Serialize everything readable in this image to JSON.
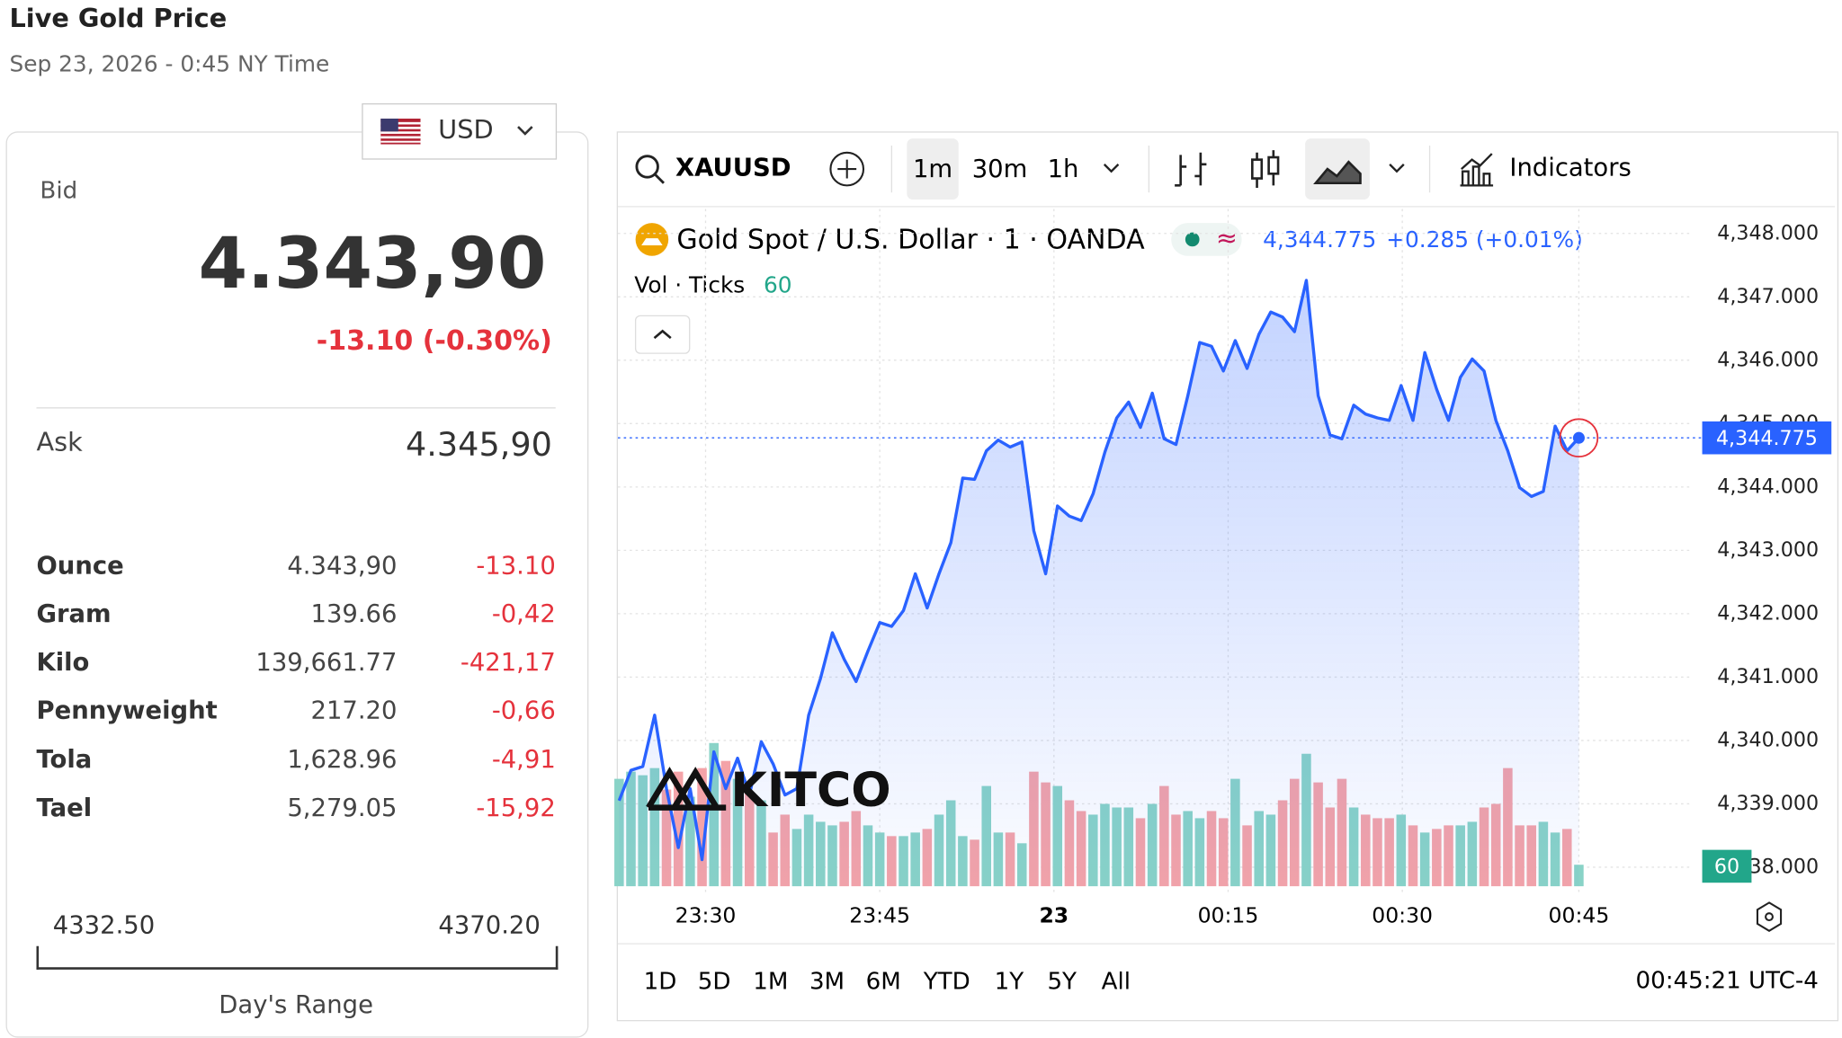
{
  "header": {
    "title": "Live Gold Price",
    "subtitle": "Sep 23, 2026 - 0:45 NY Time"
  },
  "panel": {
    "currency": "USD",
    "bid_label": "Bid",
    "bid": "4.343,90",
    "change": "-13.10 (-0.30%)",
    "ask_label": "Ask",
    "ask": "4.345,90",
    "rows": [
      [
        "Ounce",
        "4.343,90",
        "-13.10"
      ],
      [
        "Gram",
        "139.66",
        "-0,42"
      ],
      [
        "Kilo",
        "139,661.77",
        "-421,17"
      ],
      [
        "Pennyweight",
        "217.20",
        "-0,66"
      ],
      [
        "Tola",
        "1,628.96",
        "-4,91"
      ],
      [
        "Tael",
        "5,279.05",
        "-15,92"
      ]
    ],
    "range_low": "4332.50",
    "range_high": "4370.20",
    "range_label": "Day's Range"
  },
  "toolbar": {
    "symbol": "XAUUSD",
    "intervals": [
      "1m",
      "30m",
      "1h"
    ],
    "indicators": "Indicators"
  },
  "footer": {
    "ranges": [
      "1D",
      "5D",
      "1M",
      "3M",
      "6M",
      "YTD",
      "1Y",
      "5Y",
      "All"
    ],
    "clock": "00:45:21 UTC-4"
  },
  "logo": "KITCO",
  "chart_data": {
    "type": "line",
    "title": "Gold Spot / U.S. Dollar · 1 · OANDA",
    "last_label": "4,344.775",
    "change_label": "+0.285 (+0.01%)",
    "volume_title": "Vol · Ticks",
    "series": [
      {
        "name": "XAUUSD",
        "color": "#2962ff",
        "values": [
          4339.05,
          4339.53,
          4339.59,
          4340.4,
          4339.24,
          4338.31,
          4339.24,
          4338.12,
          4339.82,
          4339.24,
          4339.72,
          4339.14,
          4339.98,
          4339.63,
          4339.14,
          4339.24,
          4340.4,
          4340.98,
          4341.7,
          4341.28,
          4340.93,
          4341.41,
          4341.86,
          4341.8,
          4342.05,
          4342.63,
          4342.09,
          4342.63,
          4343.12,
          4344.14,
          4344.12,
          4344.57,
          4344.74,
          4344.63,
          4344.71,
          4343.31,
          4342.63,
          4343.7,
          4343.54,
          4343.47,
          4343.89,
          4344.55,
          4345.09,
          4345.34,
          4344.94,
          4345.48,
          4344.76,
          4344.67,
          4345.44,
          4346.28,
          4346.22,
          4345.83,
          4346.31,
          4345.87,
          4346.41,
          4346.76,
          4346.68,
          4346.45,
          4347.26,
          4345.44,
          4344.82,
          4344.76,
          4345.29,
          4345.15,
          4345.09,
          4345.05,
          4345.6,
          4345.05,
          4346.12,
          4345.54,
          4345.05,
          4345.73,
          4346.02,
          4345.83,
          4345.05,
          4344.57,
          4343.99,
          4343.85,
          4343.93,
          4344.96,
          4344.57,
          4344.775
        ]
      }
    ],
    "volume": {
      "up_color": "#89d3c7",
      "down_color": "#f4a3a8",
      "values": [
        300,
        320,
        310,
        330,
        270,
        320,
        250,
        330,
        400,
        350,
        300,
        260,
        240,
        150,
        200,
        160,
        200,
        180,
        170,
        180,
        210,
        170,
        150,
        140,
        140,
        150,
        160,
        200,
        240,
        140,
        130,
        280,
        150,
        150,
        120,
        320,
        290,
        280,
        240,
        210,
        200,
        230,
        220,
        220,
        190,
        230,
        280,
        200,
        210,
        190,
        210,
        190,
        300,
        170,
        210,
        200,
        240,
        300,
        370,
        290,
        220,
        300,
        220,
        200,
        190,
        190,
        200,
        170,
        150,
        160,
        170,
        170,
        180,
        220,
        230,
        330,
        170,
        170,
        180,
        150,
        160,
        60
      ]
    },
    "xlim": [
      0,
      81
    ],
    "xticks": [
      {
        "value": 7.3,
        "label": "23:30"
      },
      {
        "value": 22,
        "label": "23:45"
      },
      {
        "value": 36.7,
        "label": "23"
      },
      {
        "value": 51.4,
        "label": "00:15"
      },
      {
        "value": 66.1,
        "label": "00:30"
      },
      {
        "value": 81,
        "label": "00:45"
      }
    ],
    "ylim": [
      4337.7,
      4348.35
    ],
    "yticks": [
      {
        "value": 4338,
        "label": "4,338.000"
      },
      {
        "value": 4339,
        "label": "4,339.000"
      },
      {
        "value": 4340,
        "label": "4,340.000"
      },
      {
        "value": 4341,
        "label": "4,341.000"
      },
      {
        "value": 4342,
        "label": "4,342.000"
      },
      {
        "value": 4343,
        "label": "4,343.000"
      },
      {
        "value": 4344,
        "label": "4,344.000"
      },
      {
        "value": 4345,
        "label": "4,345.000"
      },
      {
        "value": 4346,
        "label": "4,346.000"
      },
      {
        "value": 4347,
        "label": "4,347.000"
      },
      {
        "value": 4348,
        "label": "4,348.000"
      }
    ],
    "grid": true
  }
}
